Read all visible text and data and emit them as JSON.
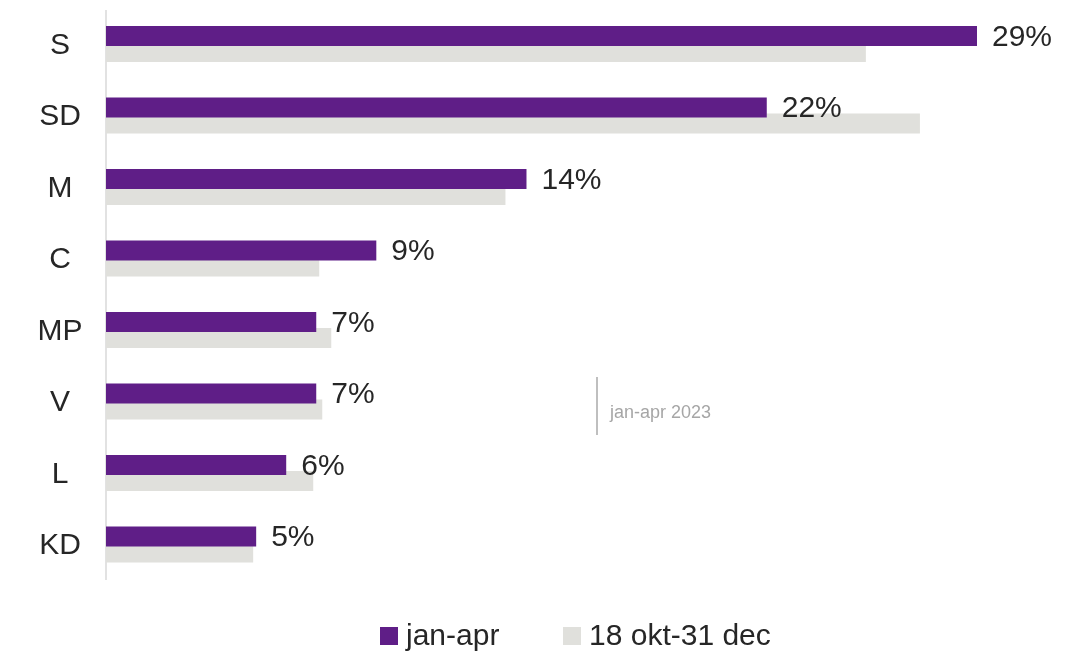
{
  "chart_data": {
    "type": "bar",
    "orientation": "horizontal",
    "categories": [
      "S",
      "SD",
      "M",
      "C",
      "MP",
      "V",
      "L",
      "KD"
    ],
    "series": [
      {
        "name": "jan-apr",
        "color": "#5f1e87",
        "values": [
          29,
          22,
          14,
          9,
          7,
          7,
          6,
          5
        ],
        "value_labels": [
          "29%",
          "22%",
          "14%",
          "9%",
          "7%",
          "7%",
          "6%",
          "5%"
        ]
      },
      {
        "name": "18 okt-31 dec",
        "color": "#e0e0dc",
        "values": [
          25.3,
          27.1,
          13.3,
          7.1,
          7.5,
          7.2,
          6.9,
          4.9
        ]
      }
    ],
    "legend": "bottom",
    "annotations": [
      "jan-apr 2023"
    ]
  }
}
